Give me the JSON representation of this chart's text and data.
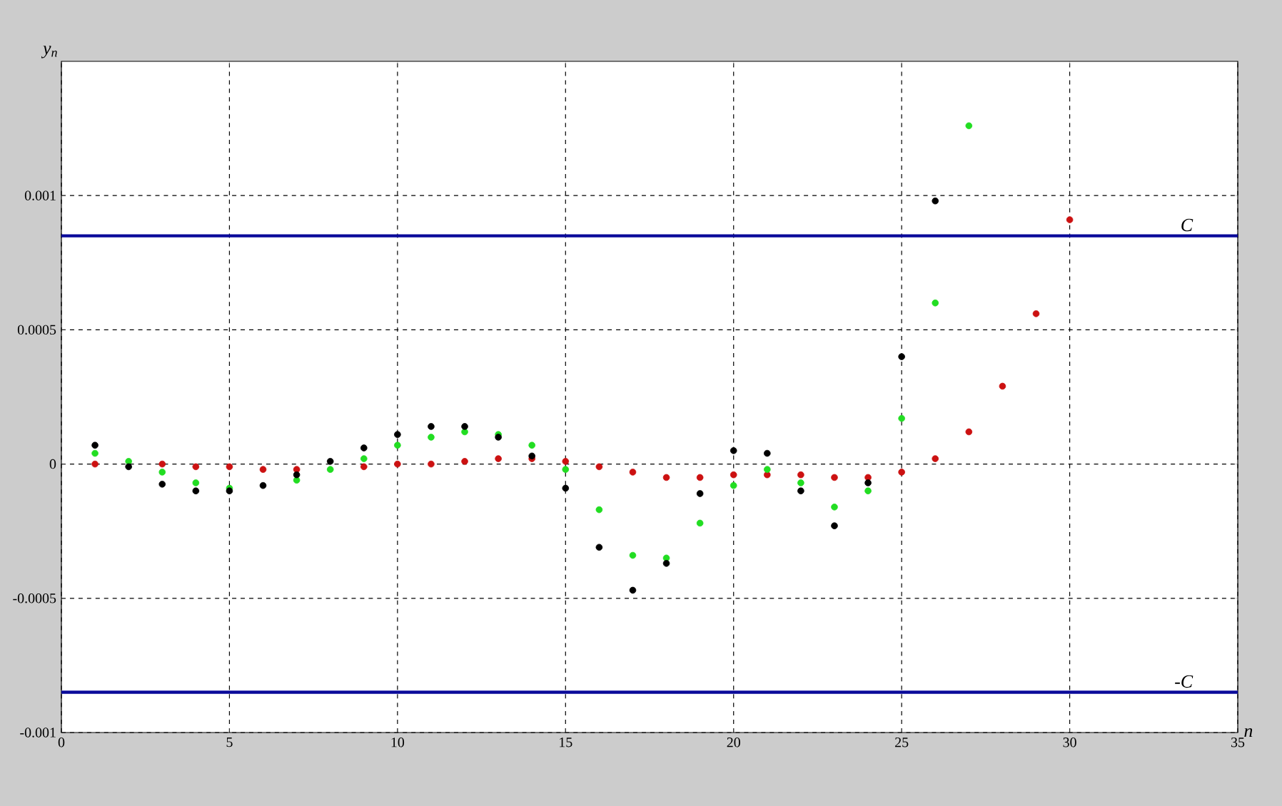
{
  "chart_data": {
    "type": "scatter",
    "xlabel": "n",
    "ylabel": "y$_{n}$",
    "x": [
      1,
      2,
      3,
      4,
      5,
      6,
      7,
      8,
      9,
      10,
      11,
      12,
      13,
      14,
      15,
      16,
      17,
      18,
      19,
      20,
      21,
      22,
      23,
      24,
      25,
      26,
      27,
      28,
      29,
      30
    ],
    "series": [
      {
        "color": "#000000",
        "values": [
          7e-05,
          -1e-05,
          -7.5e-05,
          -0.0001,
          -0.0001,
          -8e-05,
          -4e-05,
          1e-05,
          6e-05,
          0.00011,
          0.00014,
          0.00014,
          0.0001,
          3e-05,
          -9e-05,
          -0.00031,
          -0.00047,
          -0.00037,
          -0.00011,
          5e-05,
          4e-05,
          -0.0001,
          -0.00023,
          -7e-05,
          0.0004,
          0.00098,
          null,
          null,
          null,
          null
        ]
      },
      {
        "color": "#22dd22",
        "values": [
          4e-05,
          1e-05,
          -3e-05,
          -7e-05,
          -9e-05,
          null,
          -6e-05,
          -2e-05,
          2e-05,
          7e-05,
          0.0001,
          0.00012,
          0.00011,
          7e-05,
          -2e-05,
          -0.00017,
          -0.00034,
          -0.00035,
          -0.00022,
          -8e-05,
          -2e-05,
          -7e-05,
          -0.00016,
          -0.0001,
          0.00017,
          0.0006,
          0.00126,
          null,
          null,
          null
        ]
      },
      {
        "color": "#cc1111",
        "values": [
          0,
          null,
          0,
          -1e-05,
          -1e-05,
          -2e-05,
          -2e-05,
          null,
          -1e-05,
          0,
          0,
          1e-05,
          2e-05,
          2e-05,
          1e-05,
          -1e-05,
          -3e-05,
          -5e-05,
          -5e-05,
          -4e-05,
          -4e-05,
          -4e-05,
          -5e-05,
          -5e-05,
          -3e-05,
          2e-05,
          0.00012,
          0.00029,
          0.00056,
          0.00091
        ]
      }
    ],
    "xlim": [
      0,
      35
    ],
    "xticks": [
      0,
      5,
      10,
      15,
      20,
      25,
      30,
      35
    ],
    "ylim": [
      -0.001,
      0.0015
    ],
    "yticks": [
      -0.001,
      -0.0005,
      0,
      0.0005,
      0.001
    ],
    "ref_lines": [
      {
        "axis": "y",
        "value": 0.00085,
        "label": "C",
        "color": "#0a0a9a"
      },
      {
        "axis": "y",
        "value": -0.00085,
        "label": "-C",
        "color": "#0a0a9a"
      }
    ],
    "grid": true,
    "marker": "circle"
  }
}
